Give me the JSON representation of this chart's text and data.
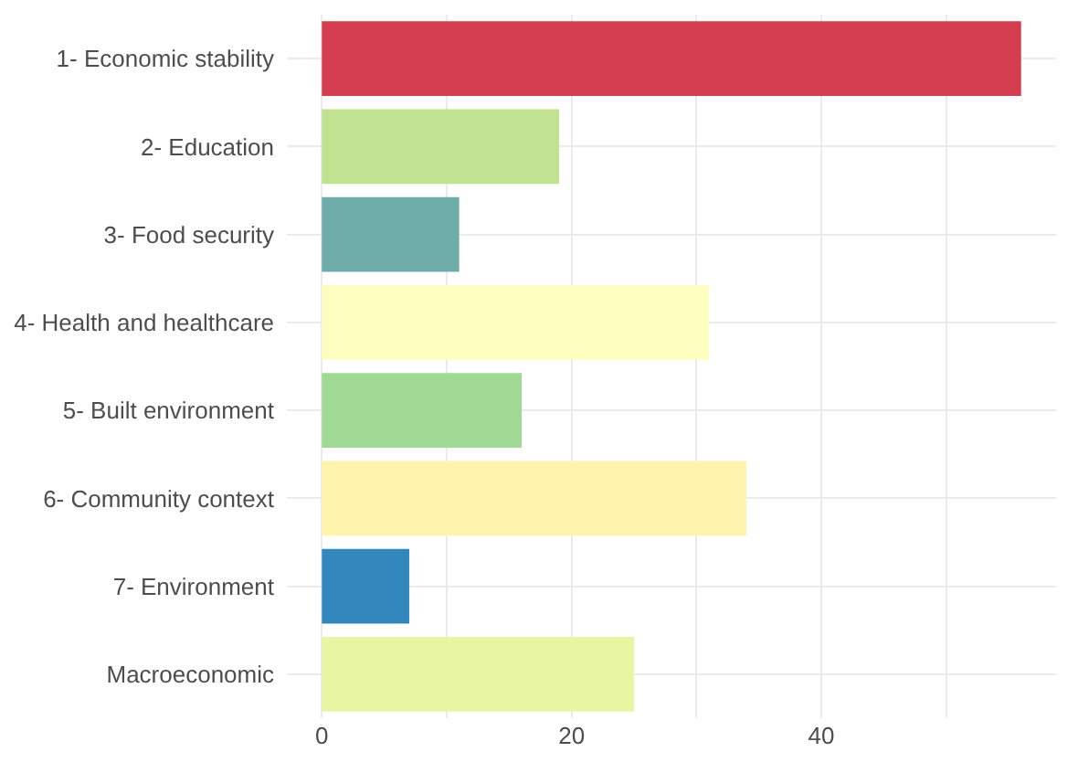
{
  "chart_data": {
    "type": "bar",
    "orientation": "horizontal",
    "categories": [
      "1- Economic stability",
      "2- Education",
      "3- Food security",
      "4- Health and healthcare",
      "5- Built environment",
      "6- Community context",
      "7- Environment",
      "Macroeconomic"
    ],
    "values": [
      56,
      19,
      11,
      31,
      16,
      34,
      7,
      25
    ],
    "colors": [
      "#d53e4f",
      "#c1e391",
      "#6eacaa",
      "#fdfdc0",
      "#a0d993",
      "#fff3ad",
      "#3288bd",
      "#e8f5a2"
    ],
    "xlim": [
      -2.8,
      58.8
    ],
    "xticks": [
      0,
      {
        "value": 10,
        "label": null
      },
      20,
      {
        "value": 30,
        "label": null
      },
      40,
      {
        "value": 50,
        "label": null
      }
    ],
    "grid": true
  }
}
